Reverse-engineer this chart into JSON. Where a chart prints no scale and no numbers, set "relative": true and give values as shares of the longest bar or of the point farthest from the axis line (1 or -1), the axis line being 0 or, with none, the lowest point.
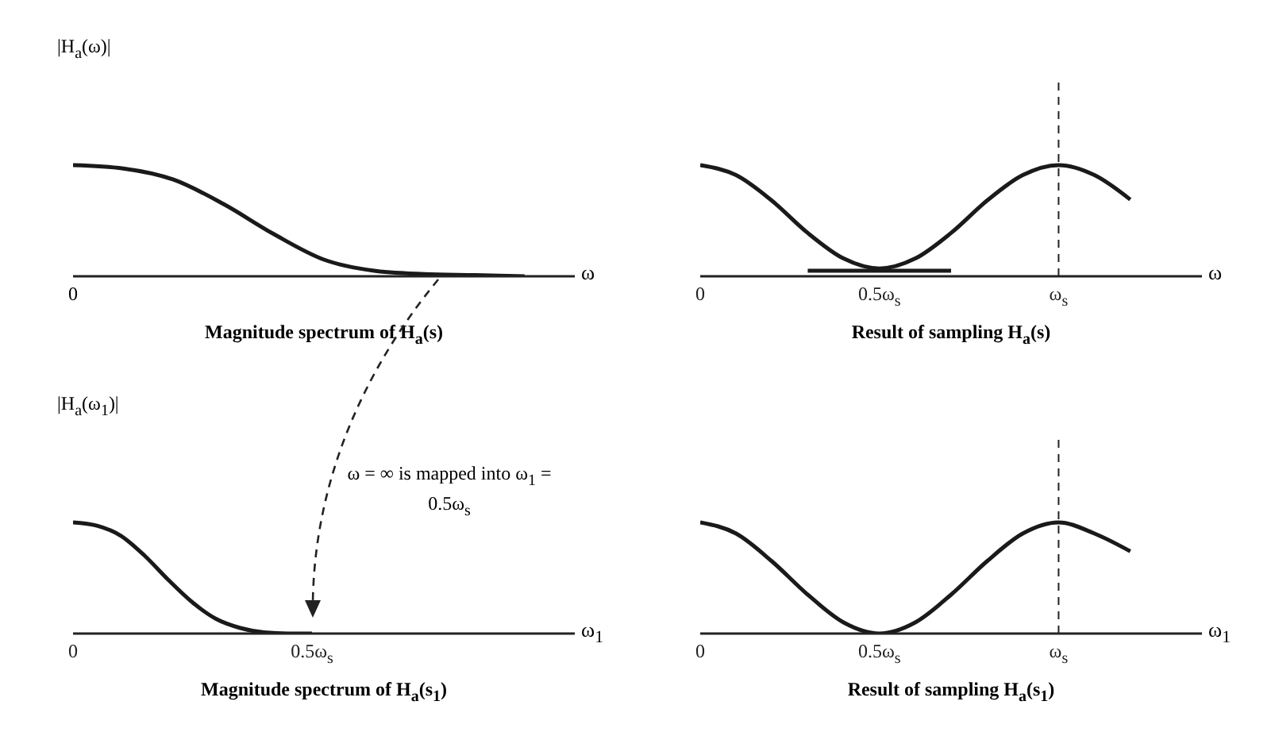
{
  "chart_data": [
    {
      "type": "line",
      "title": "Magnitude spectrum of H$_{a}$(s)",
      "xlabel": "ω",
      "ylabel": "|H$_{a}$(ω)|",
      "relative": true,
      "marker": "none",
      "categories": [
        null,
        null,
        null,
        null,
        null,
        null,
        null,
        null,
        null,
        null,
        null
      ],
      "annotations": [
        "0"
      ],
      "series": [
        {
          "color": "#1a1a1a",
          "values": [
            1,
            0.97,
            0.87,
            0.65,
            0.38,
            0.15,
            0.05,
            0.02,
            0.01,
            0,
            null
          ]
        }
      ]
    },
    {
      "type": "line",
      "title": "Result of sampling H$_{a}$(s)",
      "xlabel": "ω",
      "relative": true,
      "marker": "none",
      "categories": [
        "0",
        null,
        null,
        null,
        null,
        "0.5ω$_{s}$",
        null,
        null,
        null,
        null,
        "ω$_{s}$",
        null,
        null,
        null,
        null
      ],
      "ref_lines": [
        {
          "axis": "x",
          "value": "ω$_{s}$",
          "line_style": "dashed"
        }
      ],
      "series": [
        {
          "color": "#1a1a1a",
          "values": [
            1,
            0.91,
            0.68,
            0.39,
            0.16,
            0.07,
            0.16,
            0.39,
            0.68,
            0.91,
            1,
            0.91,
            0.69,
            null,
            null
          ]
        },
        {
          "color": "#1a1a1a",
          "values": [
            null,
            null,
            null,
            0.05,
            0.05,
            0.05,
            0.05,
            0.05,
            null,
            null,
            null,
            null,
            null,
            null,
            null
          ]
        }
      ]
    },
    {
      "type": "line",
      "title": "Magnitude spectrum of H$_{a}$(s$_{1}$)",
      "xlabel": "ω$_{1}$",
      "ylabel": "|H$_{a}$(ω$_{1}$)|",
      "relative": true,
      "marker": "none",
      "categories": [
        "0",
        null,
        null,
        null,
        null,
        null,
        null,
        null,
        null,
        null,
        "0.5ω$_{s}$",
        null,
        null,
        null,
        null,
        null,
        null,
        null,
        null,
        null,
        null,
        null
      ],
      "annotations": [
        "ω = ∞ is mapped into ω$_{1}$ = 0.5ω$_{s}$"
      ],
      "series": [
        {
          "color": "#1a1a1a",
          "values": [
            1,
            0.97,
            0.88,
            0.7,
            0.48,
            0.28,
            0.13,
            0.05,
            0.01,
            0,
            0,
            null,
            null,
            null,
            null,
            null,
            null,
            null,
            null,
            null,
            null,
            null
          ]
        }
      ]
    },
    {
      "type": "line",
      "title": "Result of sampling H$_{a}$(s$_{1}$)",
      "xlabel": "ω$_{1}$",
      "relative": true,
      "marker": "none",
      "categories": [
        "0",
        null,
        null,
        null,
        null,
        "0.5ω$_{s}$",
        null,
        null,
        null,
        null,
        "ω$_{s}$",
        null,
        null,
        null,
        null
      ],
      "ref_lines": [
        {
          "axis": "x",
          "value": "ω$_{s}$",
          "line_style": "dashed"
        }
      ],
      "series": [
        {
          "color": "#1a1a1a",
          "values": [
            1,
            0.9,
            0.65,
            0.35,
            0.1,
            0,
            0.1,
            0.35,
            0.65,
            0.9,
            1,
            0.9,
            0.74,
            null,
            null
          ]
        }
      ]
    }
  ]
}
